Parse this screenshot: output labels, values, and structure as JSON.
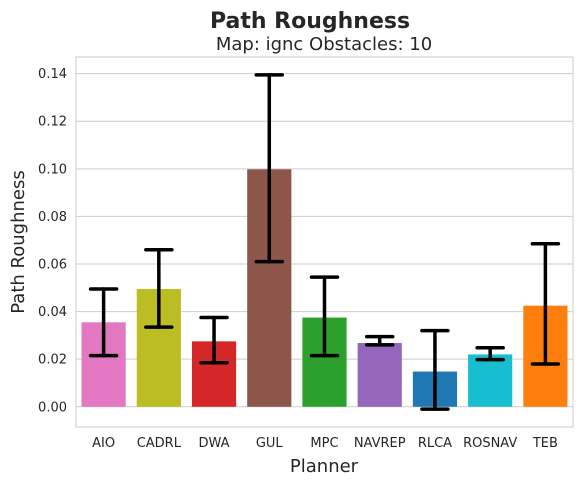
{
  "chart_data": {
    "type": "bar",
    "title": "Path Roughness",
    "subtitle": "Map: ignc Obstacles: 10",
    "xlabel": "Planner",
    "ylabel": "Path Roughness",
    "categories": [
      "AIO",
      "CADRL",
      "DWA",
      "GUL",
      "MPC",
      "NAVREP",
      "RLCA",
      "ROSNAV",
      "TEB"
    ],
    "values": [
      0.0355,
      0.0495,
      0.0275,
      0.0998,
      0.0375,
      0.0268,
      0.0148,
      0.022,
      0.0425
    ],
    "error_low": [
      0.0215,
      0.0335,
      0.0185,
      0.061,
      0.0215,
      0.026,
      -0.001,
      0.0198,
      0.018
    ],
    "error_high": [
      0.0495,
      0.066,
      0.0375,
      0.1395,
      0.0545,
      0.0295,
      0.032,
      0.0248,
      0.0685
    ],
    "colors": [
      "#e377c2",
      "#bcbd22",
      "#d62728",
      "#8c564b",
      "#2ca02c",
      "#9467bd",
      "#1f77b4",
      "#17becf",
      "#ff7f0e"
    ],
    "ylim": [
      -0.0085,
      0.147
    ],
    "yticks": [
      0.0,
      0.02,
      0.04,
      0.06,
      0.08,
      0.1,
      0.12,
      0.14
    ],
    "ytick_labels": [
      "0.00",
      "0.02",
      "0.04",
      "0.06",
      "0.08",
      "0.10",
      "0.12",
      "0.14"
    ],
    "grid": "horizontal"
  }
}
